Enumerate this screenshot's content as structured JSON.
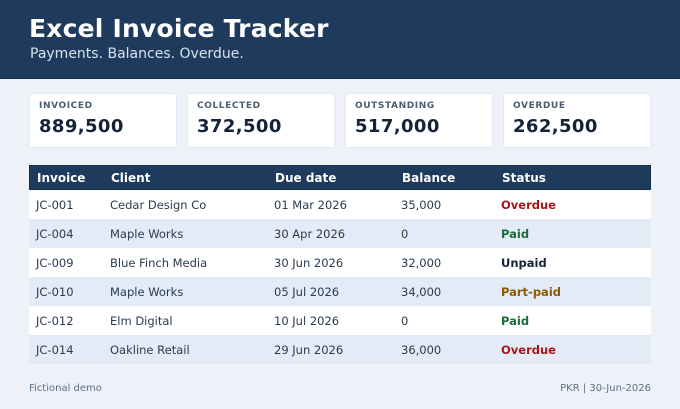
{
  "header": {
    "title": "Excel Invoice Tracker",
    "subtitle": "Payments. Balances. Overdue."
  },
  "cards": [
    {
      "label": "INVOICED",
      "value": "889,500"
    },
    {
      "label": "COLLECTED",
      "value": "372,500"
    },
    {
      "label": "OUTSTANDING",
      "value": "517,000"
    },
    {
      "label": "OVERDUE",
      "value": "262,500"
    }
  ],
  "table": {
    "columns": [
      "Invoice",
      "Client",
      "Due date",
      "Balance",
      "Status"
    ],
    "rows": [
      {
        "invoice": "JC-001",
        "client": "Cedar Design Co",
        "due": "01 Mar 2026",
        "balance": "35,000",
        "status": "Overdue"
      },
      {
        "invoice": "JC-004",
        "client": "Maple Works",
        "due": "30 Apr 2026",
        "balance": "0",
        "status": "Paid"
      },
      {
        "invoice": "JC-009",
        "client": "Blue Finch Media",
        "due": "30 Jun 2026",
        "balance": "32,000",
        "status": "Unpaid"
      },
      {
        "invoice": "JC-010",
        "client": "Maple Works",
        "due": "05 Jul 2026",
        "balance": "34,000",
        "status": "Part-paid"
      },
      {
        "invoice": "JC-012",
        "client": "Elm Digital",
        "due": "10 Jul 2026",
        "balance": "0",
        "status": "Paid"
      },
      {
        "invoice": "JC-014",
        "client": "Oakline Retail",
        "due": "29 Jun 2026",
        "balance": "36,000",
        "status": "Overdue"
      }
    ]
  },
  "status_colors": {
    "Overdue": "#a4161a",
    "Paid": "#1b6a3c",
    "Unpaid": "#14223a",
    "Part-paid": "#8a5a00"
  },
  "footer": {
    "left": "Fictional demo",
    "right": "PKR | 30-Jun-2026"
  }
}
